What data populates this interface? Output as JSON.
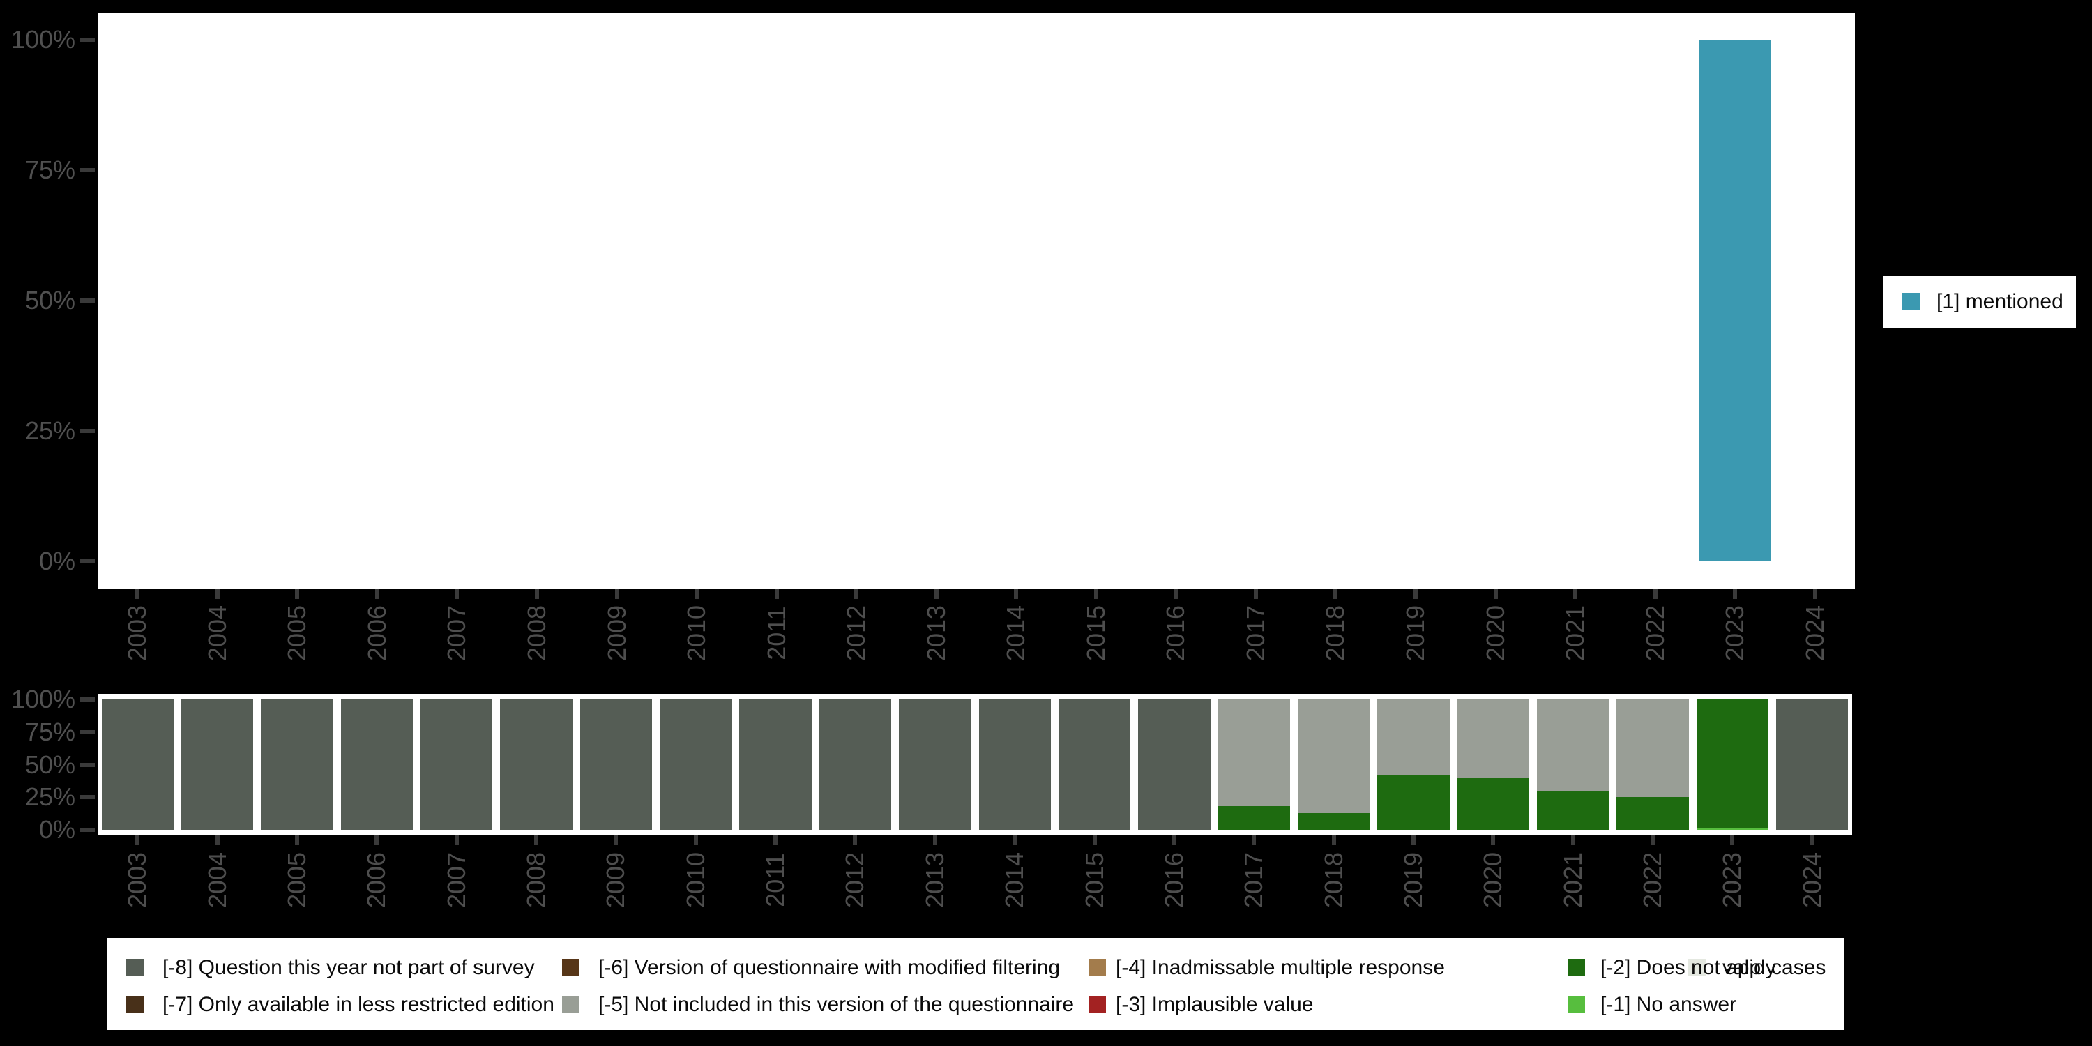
{
  "top_legend": {
    "label": "[1] mentioned",
    "color": "#3B99B1"
  },
  "bottom_legend": {
    "items": [
      {
        "label": "[-8] Question this year not part of survey",
        "color": "#555D55",
        "row": 0,
        "col": 0
      },
      {
        "label": "[-7] Only available in less restricted edition",
        "color": "#483019",
        "row": 1,
        "col": 0
      },
      {
        "label": "[-6] Version of questionnaire with modified filtering",
        "color": "#573618",
        "row": 0,
        "col": 1
      },
      {
        "label": "[-5] Not included in this version of the questionnaire",
        "color": "#999E96",
        "row": 1,
        "col": 1
      },
      {
        "label": "[-4] Inadmissable multiple response",
        "color": "#A37C4C",
        "row": 0,
        "col": 2
      },
      {
        "label": "[-3] Implausible value",
        "color": "#A32222",
        "row": 1,
        "col": 2
      },
      {
        "label": "[-2] Does not apply",
        "color": "#1E6B10",
        "row": 0,
        "col": 3
      },
      {
        "label": "[-1] No answer",
        "color": "#57BE3E",
        "row": 1,
        "col": 3
      },
      {
        "label": "valid cases",
        "color": "#E4E8E0",
        "row": 0,
        "col": 4
      }
    ]
  },
  "chart_data": [
    {
      "type": "bar",
      "panel": "top",
      "title": "",
      "categories": [
        "2003",
        "2004",
        "2005",
        "2006",
        "2007",
        "2008",
        "2009",
        "2010",
        "2011",
        "2012",
        "2013",
        "2014",
        "2015",
        "2016",
        "2017",
        "2018",
        "2019",
        "2020",
        "2021",
        "2022",
        "2023",
        "2024"
      ],
      "ylim": [
        0,
        100
      ],
      "ytick_labels": [
        "0%",
        "25%",
        "50%",
        "75%",
        "100%"
      ],
      "grid": false,
      "x_label_rotation": 90,
      "legend_position": "right",
      "series": [
        {
          "name": "[1] mentioned",
          "color": "#3B99B1",
          "values": [
            0,
            0,
            0,
            0,
            0,
            0,
            0,
            0,
            0,
            0,
            0,
            0,
            0,
            0,
            0,
            0,
            0,
            0,
            0,
            0,
            100,
            0
          ]
        }
      ]
    },
    {
      "type": "bar",
      "stacked": true,
      "panel": "bottom",
      "title": "",
      "categories": [
        "2003",
        "2004",
        "2005",
        "2006",
        "2007",
        "2008",
        "2009",
        "2010",
        "2011",
        "2012",
        "2013",
        "2014",
        "2015",
        "2016",
        "2017",
        "2018",
        "2019",
        "2020",
        "2021",
        "2022",
        "2023",
        "2024"
      ],
      "ylim": [
        0,
        100
      ],
      "ytick_labels": [
        "0%",
        "25%",
        "50%",
        "75%",
        "100%"
      ],
      "grid": false,
      "x_label_rotation": 90,
      "legend_position": "bottom",
      "series": [
        {
          "name": "[-1] No answer",
          "color": "#57BE3E",
          "values": [
            0,
            0,
            0,
            0,
            0,
            0,
            0,
            0,
            0,
            0,
            0,
            0,
            0,
            0,
            0,
            0,
            0,
            0,
            0,
            0,
            1,
            0
          ]
        },
        {
          "name": "[-2] Does not apply",
          "color": "#1E6B10",
          "values": [
            0,
            0,
            0,
            0,
            0,
            0,
            0,
            0,
            0,
            0,
            0,
            0,
            0,
            0,
            18,
            13,
            42,
            40,
            30,
            25,
            99,
            0
          ]
        },
        {
          "name": "[-5] Not included in this version of the questionnaire",
          "color": "#999E96",
          "values": [
            0,
            0,
            0,
            0,
            0,
            0,
            0,
            0,
            0,
            0,
            0,
            0,
            0,
            0,
            82,
            87,
            58,
            60,
            70,
            75,
            0,
            0
          ]
        },
        {
          "name": "[-8] Question this year not part of survey",
          "color": "#555D55",
          "values": [
            100,
            100,
            100,
            100,
            100,
            100,
            100,
            100,
            100,
            100,
            100,
            100,
            100,
            100,
            0,
            0,
            0,
            0,
            0,
            0,
            0,
            100
          ]
        }
      ]
    }
  ]
}
